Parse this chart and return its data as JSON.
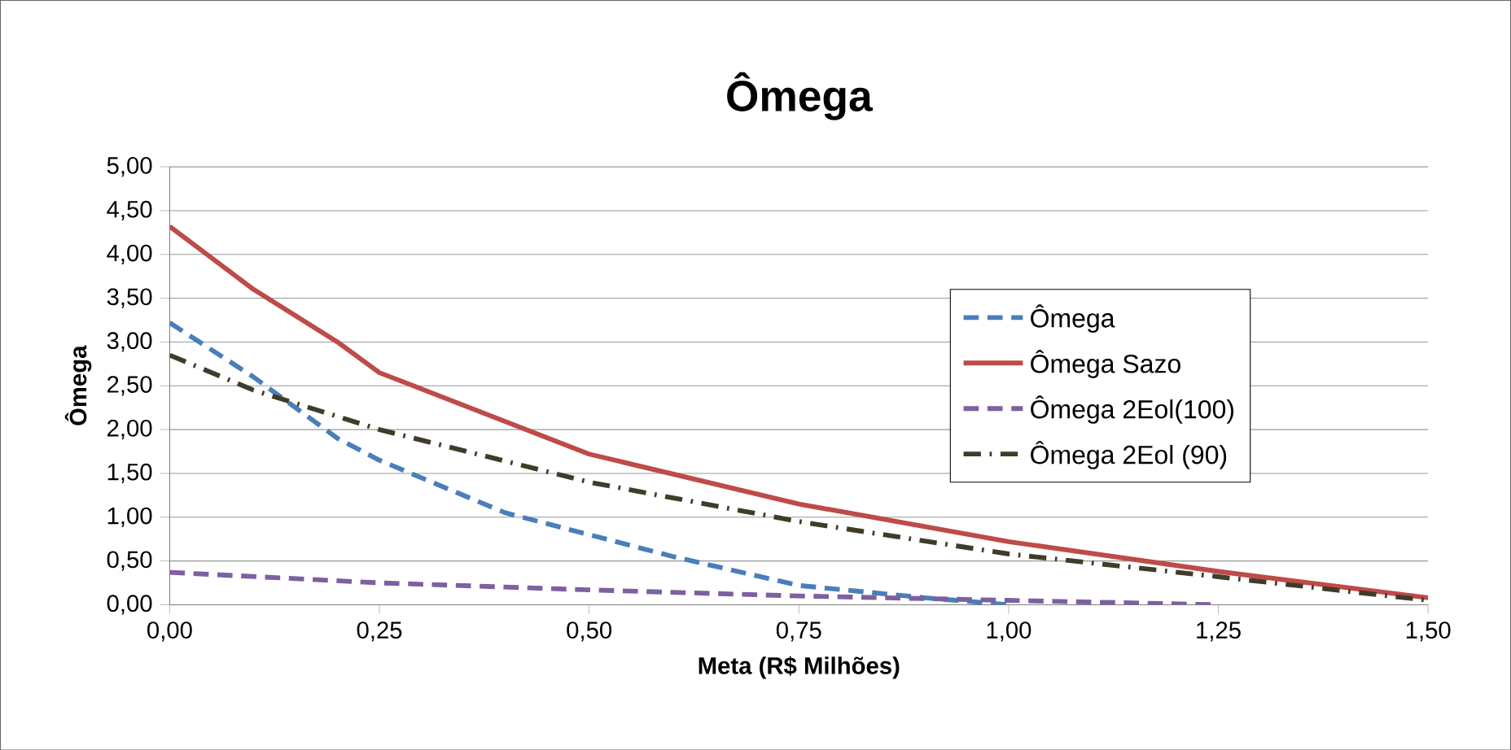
{
  "chart_data": {
    "type": "line",
    "title": "Ômega",
    "xlabel": "Meta (R$ Milhões)",
    "ylabel": "Ômega",
    "xlim": [
      0,
      1.5
    ],
    "ylim": [
      0,
      5
    ],
    "xticks": [
      {
        "value": 0,
        "label": "0,00"
      },
      {
        "value": 0.25,
        "label": "0,25"
      },
      {
        "value": 0.5,
        "label": "0,50"
      },
      {
        "value": 0.75,
        "label": "0,75"
      },
      {
        "value": 1.0,
        "label": "1,00"
      },
      {
        "value": 1.25,
        "label": "1,25"
      },
      {
        "value": 1.5,
        "label": "1,50"
      }
    ],
    "yticks": [
      {
        "value": 0,
        "label": "0,00"
      },
      {
        "value": 0.5,
        "label": "0,50"
      },
      {
        "value": 1.0,
        "label": "1,00"
      },
      {
        "value": 1.5,
        "label": "1,50"
      },
      {
        "value": 2.0,
        "label": "2,00"
      },
      {
        "value": 2.5,
        "label": "2,50"
      },
      {
        "value": 3.0,
        "label": "3,00"
      },
      {
        "value": 3.5,
        "label": "3,50"
      },
      {
        "value": 4.0,
        "label": "4,00"
      },
      {
        "value": 4.5,
        "label": "4,50"
      },
      {
        "value": 5.0,
        "label": "5,00"
      }
    ],
    "grid": "y",
    "legend": "right",
    "marker": "none",
    "series": [
      {
        "name": "Ômega",
        "color": "#4a7ebb",
        "line_style": "dashed",
        "x": [
          0,
          0.1,
          0.2,
          0.25,
          0.4,
          0.5,
          0.6,
          0.75,
          0.9,
          1.0
        ],
        "values": [
          3.22,
          2.6,
          1.9,
          1.65,
          1.05,
          0.8,
          0.55,
          0.22,
          0.08,
          0.0
        ]
      },
      {
        "name": "Ômega Sazo",
        "color": "#be4b48",
        "line_style": "solid",
        "x": [
          0,
          0.1,
          0.2,
          0.25,
          0.5,
          0.75,
          1.0,
          1.25,
          1.5
        ],
        "values": [
          4.32,
          3.6,
          3.0,
          2.65,
          1.72,
          1.15,
          0.72,
          0.38,
          0.08
        ]
      },
      {
        "name": "Ômega 2Eol(100)",
        "color": "#7d60a0",
        "line_style": "dashed",
        "x": [
          0,
          0.25,
          0.5,
          0.75,
          1.0,
          1.25
        ],
        "values": [
          0.37,
          0.25,
          0.17,
          0.1,
          0.05,
          0.0
        ]
      },
      {
        "name": "Ômega 2Eol (90)",
        "color": "#403c2a",
        "line_style": "dashdot",
        "x": [
          0,
          0.1,
          0.25,
          0.5,
          0.75,
          1.0,
          1.25,
          1.5
        ],
        "values": [
          2.85,
          2.45,
          2.0,
          1.4,
          0.95,
          0.58,
          0.32,
          0.05
        ]
      }
    ]
  }
}
